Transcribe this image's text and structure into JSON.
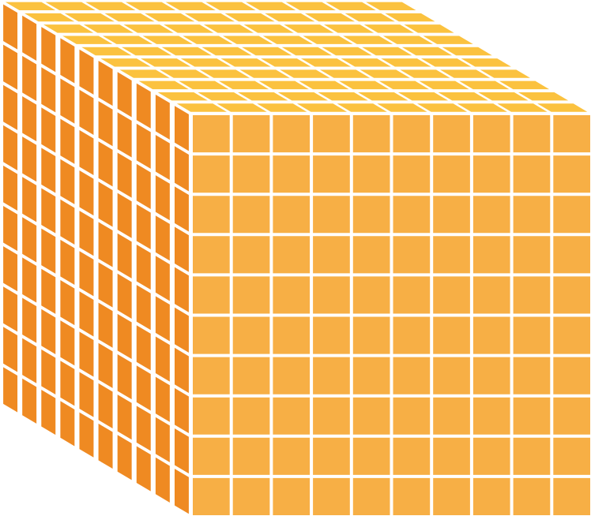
{
  "figure": {
    "type": "unit-cube-block",
    "grid_divisions": {
      "front_columns": 10,
      "front_rows": 10,
      "side_columns": 10,
      "side_rows": 10,
      "top_columns": 10,
      "top_rows": 10
    },
    "colors": {
      "front_face": "#F7AF45",
      "side_face": "#EF8A22",
      "top_face": "#FBC23F",
      "grid_lines": "#FFFFFF",
      "background": "#FFFFFF"
    }
  }
}
